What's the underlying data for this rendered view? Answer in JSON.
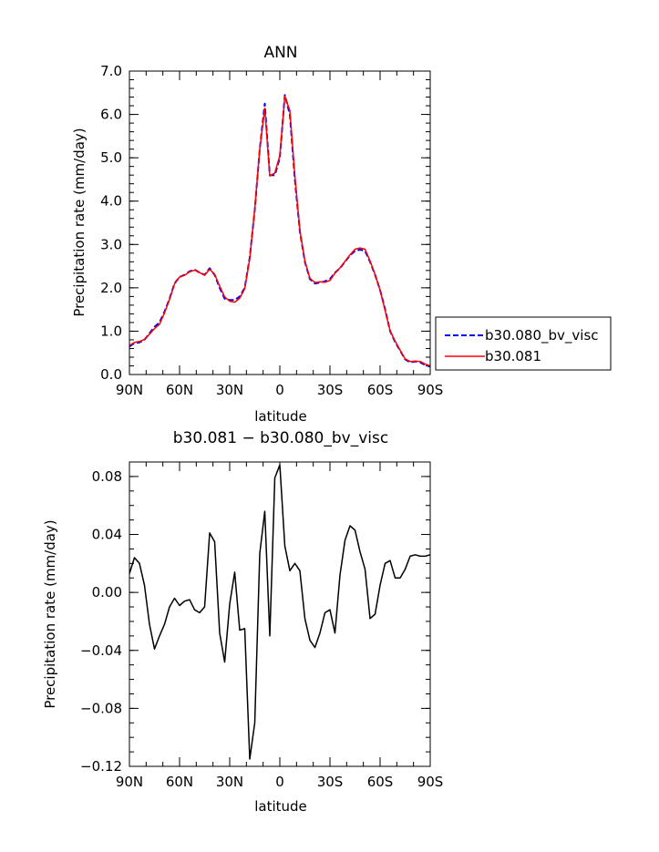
{
  "chart_data": [
    {
      "type": "line",
      "title": "ANN",
      "xlabel": "latitude",
      "ylabel": "Precipitation rate (mm/day)",
      "x": [
        90,
        87,
        84,
        81,
        78,
        75,
        72,
        69,
        66,
        63,
        60,
        57,
        54,
        51,
        48,
        45,
        42,
        39,
        36,
        33,
        30,
        27,
        24,
        21,
        18,
        15,
        12,
        9,
        6,
        3,
        0,
        -3,
        -6,
        -9,
        -12,
        -15,
        -18,
        -21,
        -24,
        -27,
        -30,
        -33,
        -36,
        -39,
        -42,
        -45,
        -48,
        -51,
        -54,
        -57,
        -60,
        -63,
        -66,
        -69,
        -72,
        -75,
        -78,
        -81,
        -84,
        -87,
        -90
      ],
      "xlim": [
        90,
        -90
      ],
      "ylim": [
        0,
        7
      ],
      "x_ticks": [
        90,
        60,
        30,
        0,
        -30,
        -60,
        -90
      ],
      "x_tick_labels": [
        "90N",
        "60N",
        "30N",
        "0",
        "30S",
        "60S",
        "90S"
      ],
      "y_ticks": [
        0,
        1,
        2,
        3,
        4,
        5,
        6,
        7
      ],
      "y_tick_labels": [
        "0.0",
        "1.0",
        "2.0",
        "3.0",
        "4.0",
        "5.0",
        "6.0",
        "7.0"
      ],
      "legend_position": "right",
      "series": [
        {
          "name": "b30.080_bv_visc",
          "color": "#0000ff",
          "style": "dashed",
          "values": [
            0.65,
            0.72,
            0.74,
            0.8,
            0.95,
            1.1,
            1.2,
            1.45,
            1.75,
            2.1,
            2.25,
            2.3,
            2.38,
            2.42,
            2.35,
            2.3,
            2.45,
            2.3,
            2.0,
            1.75,
            1.72,
            1.72,
            1.8,
            2.0,
            2.7,
            3.8,
            5.2,
            6.25,
            4.6,
            4.6,
            5.0,
            6.45,
            6.0,
            4.5,
            3.3,
            2.6,
            2.2,
            2.1,
            2.12,
            2.15,
            2.2,
            2.35,
            2.45,
            2.6,
            2.75,
            2.85,
            2.88,
            2.85,
            2.6,
            2.3,
            1.95,
            1.5,
            1.0,
            0.75,
            0.55,
            0.35,
            0.28,
            0.3,
            0.28,
            0.22,
            0.18
          ]
        },
        {
          "name": "b30.081",
          "color": "#ff0000",
          "style": "solid",
          "values": [
            0.67,
            0.74,
            0.76,
            0.81,
            0.93,
            1.06,
            1.16,
            1.42,
            1.73,
            2.09,
            2.25,
            2.29,
            2.37,
            2.41,
            2.35,
            2.29,
            2.43,
            2.31,
            2.04,
            1.79,
            1.69,
            1.67,
            1.76,
            1.98,
            2.67,
            3.82,
            5.2,
            6.14,
            4.58,
            4.65,
            5.05,
            6.42,
            6.09,
            4.58,
            3.33,
            2.62,
            2.22,
            2.12,
            2.14,
            2.13,
            2.17,
            2.34,
            2.46,
            2.61,
            2.76,
            2.89,
            2.92,
            2.89,
            2.62,
            2.31,
            1.94,
            1.48,
            1.01,
            0.77,
            0.56,
            0.36,
            0.3,
            0.31,
            0.3,
            0.24,
            0.2
          ]
        }
      ]
    },
    {
      "type": "line",
      "title": "b30.081 − b30.080_bv_visc",
      "xlabel": "latitude",
      "ylabel": "Precipitation rate (mm/day)",
      "x": [
        90,
        87,
        84,
        81,
        78,
        75,
        72,
        69,
        66,
        63,
        60,
        57,
        54,
        51,
        48,
        45,
        42,
        39,
        36,
        33,
        30,
        27,
        24,
        21,
        18,
        15,
        12,
        9,
        6,
        3,
        0,
        -3,
        -6,
        -9,
        -12,
        -15,
        -18,
        -21,
        -24,
        -27,
        -30,
        -33,
        -36,
        -39,
        -42,
        -45,
        -48,
        -51,
        -54,
        -57,
        -60,
        -63,
        -66,
        -69,
        -72,
        -75,
        -78,
        -81,
        -84,
        -87,
        -90
      ],
      "xlim": [
        90,
        -90
      ],
      "ylim": [
        -0.12,
        0.09
      ],
      "x_ticks": [
        90,
        60,
        30,
        0,
        -30,
        -60,
        -90
      ],
      "x_tick_labels": [
        "90N",
        "60N",
        "30N",
        "0",
        "30S",
        "60S",
        "90S"
      ],
      "y_ticks": [
        -0.12,
        -0.08,
        -0.04,
        0.0,
        0.04,
        0.08
      ],
      "y_tick_labels": [
        "−0.12",
        "−0.08",
        "−0.04",
        "0.00",
        "0.04",
        "0.08"
      ],
      "series": [
        {
          "color": "#000000",
          "style": "solid",
          "values": [
            0.013,
            0.024,
            0.02,
            0.005,
            -0.022,
            -0.039,
            -0.03,
            -0.022,
            -0.01,
            -0.004,
            -0.009,
            -0.006,
            -0.005,
            -0.012,
            -0.014,
            -0.01,
            0.041,
            0.035,
            -0.028,
            -0.048,
            -0.008,
            0.014,
            -0.026,
            -0.025,
            -0.115,
            -0.09,
            0.027,
            0.056,
            -0.03,
            0.079,
            0.088,
            0.032,
            0.015,
            0.02,
            0.015,
            -0.018,
            -0.033,
            -0.038,
            -0.028,
            -0.014,
            -0.012,
            -0.028,
            0.012,
            0.036,
            0.046,
            0.043,
            0.028,
            0.016,
            -0.018,
            -0.015,
            0.005,
            0.02,
            0.022,
            0.01,
            0.01,
            0.016,
            0.025,
            0.026,
            0.025,
            0.025,
            0.026
          ]
        }
      ]
    }
  ]
}
